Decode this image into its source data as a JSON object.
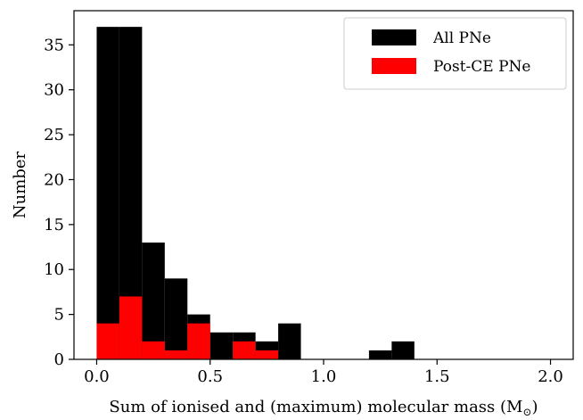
{
  "chart_data": {
    "type": "bar",
    "subtype": "histogram-overlay",
    "xlabel": "Sum of ionised and (maximum) molecular mass (M",
    "xlabel_subscript": "⊙",
    "xlabel_close": ")",
    "ylabel": "Number",
    "xlim": [
      -0.1,
      2.1
    ],
    "ylim": [
      0,
      38.8
    ],
    "xticks": [
      0.0,
      0.5,
      1.0,
      1.5,
      2.0
    ],
    "xtick_labels": [
      "0.0",
      "0.5",
      "1.0",
      "1.5",
      "2.0"
    ],
    "yticks": [
      0,
      5,
      10,
      15,
      20,
      25,
      30,
      35
    ],
    "ytick_labels": [
      "0",
      "5",
      "10",
      "15",
      "20",
      "25",
      "30",
      "35"
    ],
    "bin_width": 0.1,
    "bin_starts": [
      0.0,
      0.1,
      0.2,
      0.3,
      0.4,
      0.5,
      0.6,
      0.7,
      0.8,
      0.9,
      1.0,
      1.1,
      1.2,
      1.3,
      1.4,
      1.5,
      1.6,
      1.7,
      1.8,
      1.9
    ],
    "series": [
      {
        "name": "All PNe",
        "color": "#000000",
        "values": [
          37,
          37,
          13,
          9,
          5,
          3,
          3,
          2,
          4,
          0,
          0,
          0,
          1,
          2,
          0,
          0,
          0,
          0,
          0,
          0
        ]
      },
      {
        "name": "Post-CE PNe",
        "color": "#ff0000",
        "values": [
          4,
          7,
          2,
          1,
          4,
          0,
          2,
          1,
          0,
          0,
          0,
          0,
          0,
          0,
          0,
          0,
          0,
          0,
          0,
          0
        ]
      }
    ],
    "grid": false,
    "legend_position": "top-right"
  }
}
